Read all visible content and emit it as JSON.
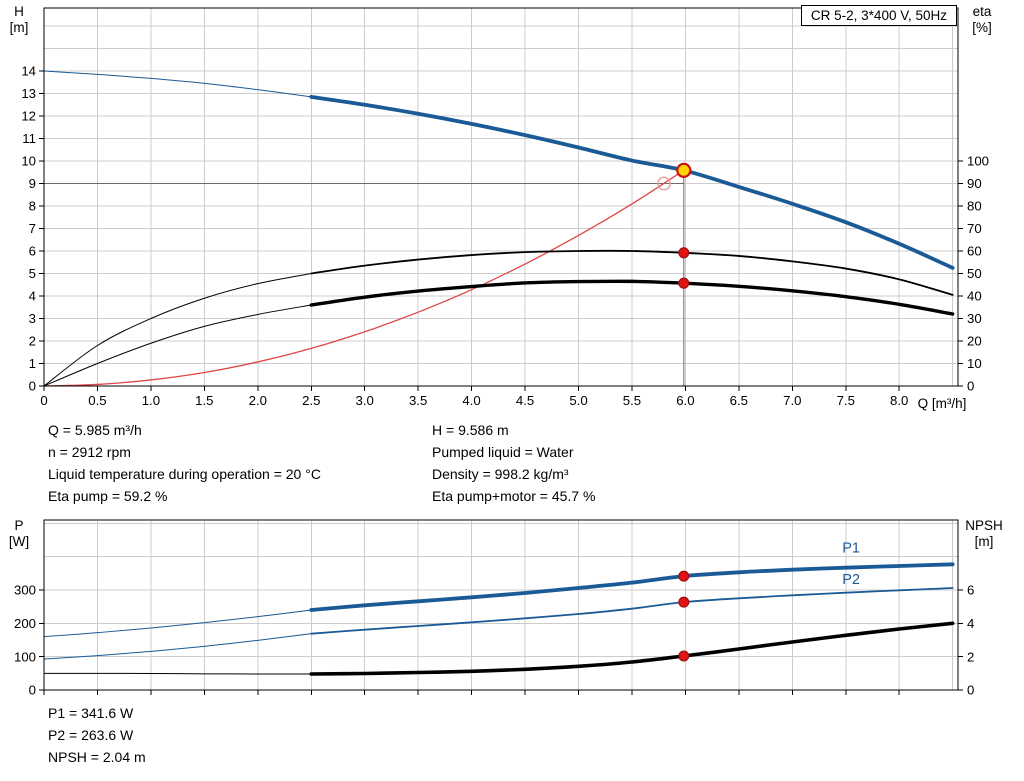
{
  "colors": {
    "curve_blue": "#1a5a96",
    "red_curve": "#e04545",
    "marker_red": "#e01212",
    "marker_red_edge": "#8f0f0f",
    "duty_fill": "#ffd400",
    "duty_ring": "#c81414",
    "open_marker": "#ea9a9a",
    "grid": "#cccccc",
    "ref_line": "#6b6b6b"
  },
  "chart_data": [
    {
      "id": "head-efficiency-chart",
      "type": "line",
      "title": "CR 5-2, 3*400 V, 50Hz",
      "x_axis": {
        "label": "Q [m³/h]",
        "min": 0,
        "max": 8.55,
        "grid_step": 0.5,
        "ticks": [
          0,
          0.5,
          1,
          1.5,
          2,
          2.5,
          3,
          3.5,
          4,
          4.5,
          5,
          5.5,
          6,
          6.5,
          7,
          7.5,
          8
        ],
        "tick_labels": [
          "0",
          "0.5",
          "1.0",
          "1.5",
          "2.0",
          "2.5",
          "3.0",
          "3.5",
          "4.0",
          "4.5",
          "5.0",
          "5.5",
          "6.0",
          "6.5",
          "7.0",
          "7.5",
          "8.0"
        ]
      },
      "y_left": {
        "name": "H",
        "unit": "[m]",
        "min": 0,
        "max": 16.8,
        "grid_step": 1,
        "ticks": [
          0,
          1,
          2,
          3,
          4,
          5,
          6,
          7,
          8,
          9,
          10,
          11,
          12,
          13,
          14
        ],
        "tick_labels": [
          "0",
          "1",
          "2",
          "3",
          "4",
          "5",
          "6",
          "7",
          "8",
          "9",
          "10",
          "11",
          "12",
          "13",
          "14"
        ]
      },
      "y_right": {
        "name": "eta",
        "unit": "[%]",
        "left_per_right": 0.1,
        "ticks": [
          0,
          10,
          20,
          30,
          40,
          50,
          60,
          70,
          80,
          90,
          100
        ],
        "tick_labels": [
          "0",
          "10",
          "20",
          "30",
          "40",
          "50",
          "60",
          "70",
          "80",
          "90",
          "100"
        ]
      },
      "series": [
        {
          "name": "head-curve-low-flow",
          "axis": "left",
          "color": "#1a5a96",
          "width": 1,
          "pts": [
            [
              0,
              14
            ],
            [
              0.5,
              13.85
            ],
            [
              1,
              13.67
            ],
            [
              1.5,
              13.45
            ],
            [
              2,
              13.17
            ],
            [
              2.5,
              12.85
            ]
          ]
        },
        {
          "name": "head-curve",
          "axis": "left",
          "color": "#1a5a96",
          "width": 3.8,
          "pts": [
            [
              2.5,
              12.85
            ],
            [
              3,
              12.5
            ],
            [
              3.5,
              12.1
            ],
            [
              4,
              11.65
            ],
            [
              4.5,
              11.15
            ],
            [
              5,
              10.6
            ],
            [
              5.5,
              10.02
            ],
            [
              5.985,
              9.586
            ],
            [
              6.5,
              8.85
            ],
            [
              7,
              8.1
            ],
            [
              7.5,
              7.28
            ],
            [
              8,
              6.32
            ],
            [
              8.5,
              5.25
            ]
          ]
        },
        {
          "name": "system-curve",
          "axis": "left",
          "color": "#e04545",
          "width": 1.3,
          "pts": [
            [
              0,
              0
            ],
            [
              0.5,
              0.07
            ],
            [
              1,
              0.27
            ],
            [
              1.5,
              0.6
            ],
            [
              2,
              1.07
            ],
            [
              2.5,
              1.67
            ],
            [
              3,
              2.41
            ],
            [
              3.5,
              3.28
            ],
            [
              4,
              4.28
            ],
            [
              4.5,
              5.42
            ],
            [
              5,
              6.69
            ],
            [
              5.5,
              8.09
            ],
            [
              5.985,
              9.586
            ]
          ]
        },
        {
          "name": "eta-pump-curve-low-flow",
          "axis": "right",
          "color": "#000000",
          "width": 1,
          "pts": [
            [
              0,
              0
            ],
            [
              0.5,
              18
            ],
            [
              1,
              30
            ],
            [
              1.5,
              39
            ],
            [
              2,
              45.5
            ],
            [
              2.5,
              50
            ]
          ]
        },
        {
          "name": "eta-pump-curve",
          "axis": "right",
          "color": "#000000",
          "width": 1.8,
          "pts": [
            [
              2.5,
              50
            ],
            [
              3,
              53.5
            ],
            [
              3.5,
              56.2
            ],
            [
              4,
              58.2
            ],
            [
              4.5,
              59.5
            ],
            [
              5,
              60
            ],
            [
              5.5,
              60
            ],
            [
              5.985,
              59.2
            ],
            [
              6.5,
              57.8
            ],
            [
              7,
              55.4
            ],
            [
              7.5,
              52.2
            ],
            [
              8,
              47.4
            ],
            [
              8.5,
              40.5
            ]
          ]
        },
        {
          "name": "eta-pump-motor-curve-low-flow",
          "axis": "right",
          "color": "#000000",
          "width": 1,
          "pts": [
            [
              0,
              0
            ],
            [
              0.5,
              10
            ],
            [
              1,
              19
            ],
            [
              1.5,
              26.5
            ],
            [
              2,
              31.8
            ],
            [
              2.5,
              36
            ]
          ]
        },
        {
          "name": "eta-pump-motor-curve",
          "axis": "right",
          "color": "#000000",
          "width": 3.4,
          "pts": [
            [
              2.5,
              36
            ],
            [
              3,
              39.5
            ],
            [
              3.5,
              42.2
            ],
            [
              4,
              44.2
            ],
            [
              4.5,
              45.8
            ],
            [
              5,
              46.4
            ],
            [
              5.5,
              46.5
            ],
            [
              5.985,
              45.7
            ],
            [
              6.5,
              44.3
            ],
            [
              7,
              42.3
            ],
            [
              7.5,
              39.7
            ],
            [
              8,
              36.3
            ],
            [
              8.5,
              32
            ]
          ]
        }
      ],
      "ref_lines": [
        {
          "dir": "h",
          "v": 9.0,
          "q0": 0,
          "q1": 5.985,
          "name": "head-reference-line"
        },
        {
          "dir": "v",
          "q": 5.985,
          "v0": 0,
          "v1": 9.586,
          "name": "flow-reference-line"
        }
      ],
      "markers": [
        {
          "name": "duty-point-marker",
          "style": "duty",
          "axis": "left",
          "q": 5.985,
          "v": 9.586
        },
        {
          "name": "requested-duty-marker",
          "style": "open",
          "axis": "left",
          "q": 5.8,
          "v": 9.0
        },
        {
          "name": "eta-pump-duty-marker",
          "style": "red",
          "axis": "right",
          "q": 5.985,
          "v": 59.2
        },
        {
          "name": "eta-pump-motor-duty-marker",
          "style": "red",
          "axis": "right",
          "q": 5.985,
          "v": 45.7
        }
      ],
      "duty_point": {
        "Q_m3h": 5.985,
        "H_m": 9.586,
        "eta_pump_pct": 59.2,
        "eta_pump_motor_pct": 45.7
      },
      "requested_point": {
        "Q_m3h": 5.8,
        "H_m": 9.0
      }
    },
    {
      "id": "power-npsh-chart",
      "type": "line",
      "x_axis": {
        "min": 0,
        "max": 8.55,
        "grid_step": 0.5,
        "ticks": [
          0,
          0.5,
          1,
          1.5,
          2,
          2.5,
          3,
          3.5,
          4,
          4.5,
          5,
          5.5,
          6,
          6.5,
          7,
          7.5,
          8
        ],
        "tick_labels": []
      },
      "y_left": {
        "name": "P",
        "unit": "[W]",
        "min": 0,
        "max": 510,
        "grid_step": 100,
        "ticks": [
          0,
          100,
          200,
          300
        ],
        "tick_labels": [
          "0",
          "100",
          "200",
          "300"
        ]
      },
      "y_right": {
        "name": "NPSH",
        "unit": "[m]",
        "left_per_right": 50,
        "ticks": [
          0,
          2,
          4,
          6
        ],
        "tick_labels": [
          "0",
          "2",
          "4",
          "6"
        ]
      },
      "series": [
        {
          "name": "p1-curve-low-flow",
          "axis": "left",
          "color": "#1a5a96",
          "width": 1,
          "pts": [
            [
              0,
              160
            ],
            [
              0.5,
              172
            ],
            [
              1,
              186
            ],
            [
              1.5,
              202
            ],
            [
              2,
              220
            ],
            [
              2.5,
              240
            ]
          ]
        },
        {
          "name": "p1-curve",
          "axis": "left",
          "color": "#1a5a96",
          "width": 3.8,
          "pts": [
            [
              2.5,
              240
            ],
            [
              3,
              254
            ],
            [
              3.5,
              266
            ],
            [
              4,
              278
            ],
            [
              4.5,
              291
            ],
            [
              5,
              306
            ],
            [
              5.5,
              322
            ],
            [
              5.985,
              341.6
            ],
            [
              6.5,
              353
            ],
            [
              7,
              361
            ],
            [
              7.5,
              367
            ],
            [
              8,
              372
            ],
            [
              8.5,
              377
            ]
          ]
        },
        {
          "name": "p2-curve-low-flow",
          "axis": "left",
          "color": "#1a5a96",
          "width": 1,
          "pts": [
            [
              0,
              93
            ],
            [
              0.5,
              103
            ],
            [
              1,
              116
            ],
            [
              1.5,
              131
            ],
            [
              2,
              149
            ],
            [
              2.5,
              169
            ]
          ]
        },
        {
          "name": "p2-curve",
          "axis": "left",
          "color": "#1a5a96",
          "width": 1.8,
          "pts": [
            [
              2.5,
              169
            ],
            [
              3,
              181
            ],
            [
              3.5,
              192
            ],
            [
              4,
              203
            ],
            [
              4.5,
              215
            ],
            [
              5,
              228
            ],
            [
              5.5,
              244
            ],
            [
              5.985,
              263.6
            ],
            [
              6.5,
              275
            ],
            [
              7,
              284
            ],
            [
              7.5,
              292
            ],
            [
              8,
              299
            ],
            [
              8.5,
              306
            ]
          ]
        },
        {
          "name": "npsh-curve-low-flow",
          "axis": "right",
          "color": "#000000",
          "width": 1,
          "pts": [
            [
              0,
              1
            ],
            [
              0.5,
              1
            ],
            [
              1,
              0.99
            ],
            [
              1.5,
              0.97
            ],
            [
              2,
              0.96
            ],
            [
              2.5,
              0.96
            ]
          ]
        },
        {
          "name": "npsh-curve",
          "axis": "right",
          "color": "#000000",
          "width": 3.6,
          "pts": [
            [
              2.5,
              0.96
            ],
            [
              3,
              0.99
            ],
            [
              3.5,
              1.05
            ],
            [
              4,
              1.12
            ],
            [
              4.5,
              1.24
            ],
            [
              5,
              1.42
            ],
            [
              5.5,
              1.68
            ],
            [
              5.985,
              2.04
            ],
            [
              6.5,
              2.46
            ],
            [
              7,
              2.88
            ],
            [
              7.5,
              3.28
            ],
            [
              8,
              3.66
            ],
            [
              8.5,
              4
            ]
          ]
        }
      ],
      "markers": [
        {
          "name": "p1-duty-marker",
          "style": "red",
          "axis": "left",
          "q": 5.985,
          "v": 341.6
        },
        {
          "name": "p2-duty-marker",
          "style": "red",
          "axis": "left",
          "q": 5.985,
          "v": 263.6
        },
        {
          "name": "npsh-duty-marker",
          "style": "red",
          "axis": "right",
          "q": 5.985,
          "v": 2.04
        }
      ],
      "labels": [
        {
          "text": "P1",
          "q": 7.55,
          "v": 412,
          "axis": "left",
          "color": "#1a5a96"
        },
        {
          "text": "P2",
          "q": 7.55,
          "v": 318,
          "axis": "left",
          "color": "#1a5a96"
        }
      ],
      "duty_values": {
        "P1_W": 341.6,
        "P2_W": 263.6,
        "NPSH_m": 2.04
      }
    }
  ],
  "info_top": {
    "left": [
      "Q = 5.985 m³/h",
      "n = 2912 rpm",
      "Liquid temperature during operation = 20 °C",
      "Eta pump = 59.2 %"
    ],
    "right": [
      "H = 9.586 m",
      "Pumped liquid = Water",
      "Density = 998.2 kg/m³",
      "Eta pump+motor = 45.7 %"
    ]
  },
  "info_bottom": [
    "P1 = 341.6 W",
    "P2 = 263.6 W",
    "NPSH = 2.04 m"
  ]
}
